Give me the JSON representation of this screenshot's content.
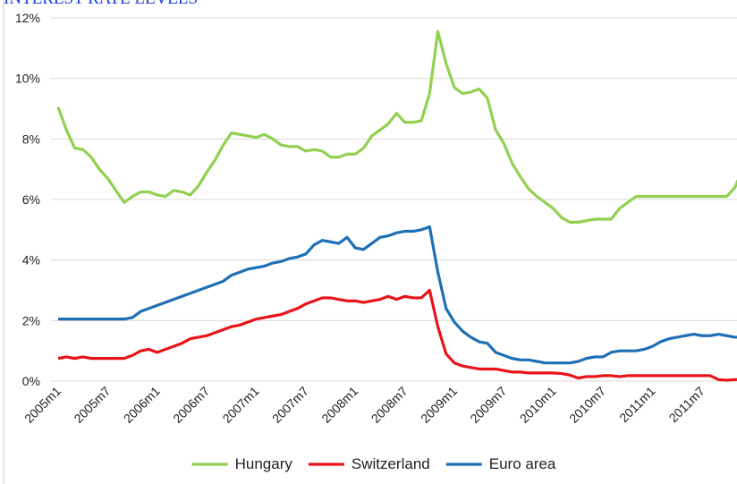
{
  "chart_data": {
    "type": "line",
    "title": "INTEREST RATE LEVELS",
    "categories": [
      "2005m1",
      null,
      null,
      null,
      null,
      null,
      "2005m7",
      null,
      null,
      null,
      null,
      null,
      "2006m1",
      null,
      null,
      null,
      null,
      null,
      "2006m7",
      null,
      null,
      null,
      null,
      null,
      "2007m1",
      null,
      null,
      null,
      null,
      null,
      "2007m7",
      null,
      null,
      null,
      null,
      null,
      "2008m1",
      null,
      null,
      null,
      null,
      null,
      "2008m7",
      null,
      null,
      null,
      null,
      null,
      "2009m1",
      null,
      null,
      null,
      null,
      null,
      "2009m7",
      null,
      null,
      null,
      null,
      null,
      "2010m1",
      null,
      null,
      null,
      null,
      null,
      "2010m7",
      null,
      null,
      null,
      null,
      null,
      "2011m1",
      null,
      null,
      null,
      null,
      null,
      "2011m7",
      null,
      null,
      null,
      null,
      null
    ],
    "series": [
      {
        "name": "Hungary",
        "color": "#92d050",
        "values": [
          9.05,
          8.3,
          7.7,
          7.65,
          7.4,
          7.0,
          6.7,
          6.3,
          5.9,
          6.1,
          6.25,
          6.25,
          6.15,
          6.1,
          6.3,
          6.25,
          6.15,
          6.45,
          6.9,
          7.3,
          7.8,
          8.2,
          8.15,
          8.1,
          8.05,
          8.15,
          8.0,
          7.8,
          7.75,
          7.75,
          7.6,
          7.65,
          7.6,
          7.4,
          7.4,
          7.5,
          7.5,
          7.7,
          8.1,
          8.3,
          8.5,
          8.85,
          8.55,
          8.55,
          8.6,
          9.5,
          11.55,
          10.5,
          9.7,
          9.5,
          9.55,
          9.65,
          9.35,
          8.3,
          7.85,
          7.2,
          6.75,
          6.35,
          6.1,
          5.9,
          5.7,
          5.4,
          5.25,
          5.25,
          5.3,
          5.35,
          5.35,
          5.35,
          5.7,
          5.9,
          6.1,
          6.1,
          6.1,
          6.1,
          6.1,
          6.1,
          6.1,
          6.1,
          6.1,
          6.1,
          6.1,
          6.1,
          6.4,
          7.05
        ]
      },
      {
        "name": "Switzerland",
        "color": "#e8141a",
        "values": [
          0.75,
          0.8,
          0.75,
          0.8,
          0.75,
          0.75,
          0.75,
          0.75,
          0.75,
          0.85,
          1.0,
          1.05,
          0.95,
          1.05,
          1.15,
          1.25,
          1.4,
          1.45,
          1.5,
          1.6,
          1.7,
          1.8,
          1.85,
          1.95,
          2.05,
          2.1,
          2.15,
          2.2,
          2.3,
          2.4,
          2.55,
          2.65,
          2.75,
          2.75,
          2.7,
          2.65,
          2.65,
          2.6,
          2.65,
          2.7,
          2.8,
          2.7,
          2.8,
          2.75,
          2.75,
          3.0,
          1.8,
          0.9,
          0.6,
          0.5,
          0.45,
          0.4,
          0.4,
          0.4,
          0.35,
          0.3,
          0.3,
          0.27,
          0.27,
          0.27,
          0.27,
          0.25,
          0.2,
          0.1,
          0.15,
          0.15,
          0.18,
          0.18,
          0.15,
          0.18,
          0.18,
          0.18,
          0.18,
          0.18,
          0.18,
          0.18,
          0.18,
          0.18,
          0.18,
          0.18,
          0.05,
          0.03,
          0.05,
          0.05
        ]
      },
      {
        "name": "Euro area",
        "color": "#1f6fb4",
        "values": [
          2.05,
          2.05,
          2.05,
          2.05,
          2.05,
          2.05,
          2.05,
          2.05,
          2.05,
          2.1,
          2.3,
          2.4,
          2.5,
          2.6,
          2.7,
          2.8,
          2.9,
          3.0,
          3.1,
          3.2,
          3.3,
          3.5,
          3.6,
          3.7,
          3.75,
          3.8,
          3.9,
          3.95,
          4.05,
          4.1,
          4.2,
          4.5,
          4.65,
          4.6,
          4.55,
          4.75,
          4.4,
          4.35,
          4.55,
          4.75,
          4.8,
          4.9,
          4.95,
          4.95,
          5.0,
          5.1,
          3.6,
          2.4,
          1.95,
          1.65,
          1.45,
          1.3,
          1.25,
          0.95,
          0.85,
          0.75,
          0.7,
          0.7,
          0.65,
          0.6,
          0.6,
          0.6,
          0.6,
          0.65,
          0.75,
          0.8,
          0.8,
          0.95,
          1.0,
          1.0,
          1.0,
          1.05,
          1.15,
          1.3,
          1.4,
          1.45,
          1.5,
          1.55,
          1.5,
          1.5,
          1.55,
          1.5,
          1.45,
          1.45
        ]
      }
    ],
    "ylim": [
      0,
      12
    ],
    "yticks": [
      {
        "value": 0,
        "label": "0%"
      },
      {
        "value": 2,
        "label": "2%"
      },
      {
        "value": 4,
        "label": "4%"
      },
      {
        "value": 6,
        "label": "6%"
      },
      {
        "value": 8,
        "label": "8%"
      },
      {
        "value": 10,
        "label": "10%"
      },
      {
        "value": 12,
        "label": "12%"
      }
    ],
    "grid": true,
    "legend": "bottom"
  }
}
